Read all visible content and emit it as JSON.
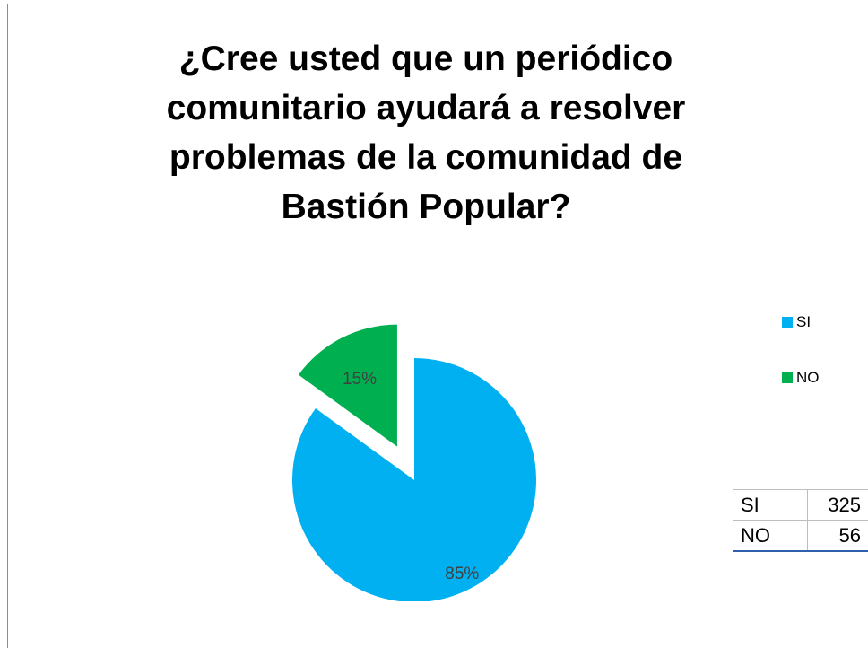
{
  "chart_data": {
    "type": "pie",
    "title": "¿Cree usted que un periódico comunitario ayudará a resolver problemas de la comunidad de Bastión Popular?",
    "slices": [
      {
        "label": "SI",
        "value": 85,
        "data_label": "85%",
        "color": "#00b0f0",
        "exploded": false
      },
      {
        "label": "NO",
        "value": 15,
        "data_label": "15%",
        "color": "#00b050",
        "exploded": true
      }
    ],
    "legend": {
      "position": "right",
      "entries": [
        "SI",
        "NO"
      ]
    }
  },
  "table": {
    "rows": [
      {
        "label": "SI",
        "value": "325"
      },
      {
        "label": "NO",
        "value": "56"
      }
    ]
  }
}
